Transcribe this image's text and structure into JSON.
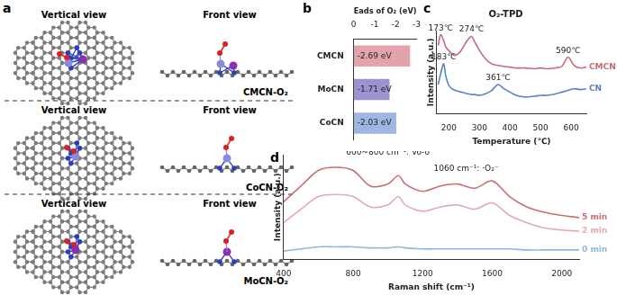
{
  "diagram": {
    "label": "a",
    "views": [
      "Vertical view",
      "Front view"
    ],
    "structures": [
      "CMCN-O₂",
      "CoCN-O₂",
      "MoCN-O₂"
    ]
  },
  "chart_data": [
    {
      "label": "b",
      "type": "bar",
      "orientation": "horizontal",
      "x_label": "Eads of O₂ (eV)",
      "categories": [
        "CMCN",
        "MoCN",
        "CoCN"
      ],
      "values": [
        -2.69,
        -1.71,
        -2.03
      ],
      "value_labels": [
        "-2.69 eV",
        "-1.71 eV",
        "-2.03 eV"
      ],
      "colors": [
        "#e3a3ab",
        "#9d92cd",
        "#9fb6e2"
      ],
      "xlim": [
        0,
        -3
      ],
      "xticks": [
        0,
        -1,
        -2,
        -3
      ],
      "data_labels": true,
      "grid": false
    },
    {
      "label": "c",
      "type": "line",
      "title": "O₂-TPD",
      "x_label": "Temperature (℃)",
      "y_label": "Intensity (a.u.)",
      "x": [
        165,
        173,
        183,
        190,
        200,
        210,
        220,
        230,
        240,
        250,
        260,
        274,
        285,
        300,
        320,
        340,
        361,
        380,
        400,
        420,
        450,
        480,
        500,
        520,
        550,
        570,
        590,
        610,
        630,
        650
      ],
      "series": [
        {
          "name": "CMCN",
          "color": "#c86a78",
          "values": [
            0.82,
            0.95,
            0.88,
            0.8,
            0.76,
            0.72,
            0.7,
            0.72,
            0.76,
            0.82,
            0.88,
            0.93,
            0.86,
            0.76,
            0.66,
            0.6,
            0.58,
            0.57,
            0.56,
            0.55,
            0.55,
            0.54,
            0.55,
            0.54,
            0.55,
            0.57,
            0.68,
            0.58,
            0.55,
            0.56
          ]
        },
        {
          "name": "CN",
          "color": "#5a82c4",
          "values": [
            0.35,
            0.48,
            0.6,
            0.45,
            0.34,
            0.3,
            0.28,
            0.27,
            0.26,
            0.25,
            0.24,
            0.23,
            0.23,
            0.22,
            0.24,
            0.28,
            0.35,
            0.3,
            0.26,
            0.22,
            0.2,
            0.21,
            0.22,
            0.22,
            0.24,
            0.26,
            0.28,
            0.3,
            0.29,
            0.3
          ]
        }
      ],
      "xlim": [
        160,
        650
      ],
      "xticks": [
        200,
        300,
        400,
        500,
        600
      ],
      "ylim": [
        0,
        1
      ],
      "tick_labels": "x",
      "grid": false,
      "annotations": [
        {
          "text": "173℃",
          "x": 173,
          "y": 0.97
        },
        {
          "text": "274℃",
          "x": 274,
          "y": 0.95
        },
        {
          "text": "590℃",
          "x": 590,
          "y": 0.7
        },
        {
          "text": "183℃",
          "x": 183,
          "y": 0.62
        },
        {
          "text": "361℃",
          "x": 361,
          "y": 0.37
        }
      ]
    },
    {
      "label": "d",
      "type": "line",
      "x_label": "Raman shift (cm⁻¹)",
      "y_label": "Intensity (a.u.)",
      "x": [
        400,
        500,
        600,
        700,
        800,
        900,
        1000,
        1060,
        1100,
        1200,
        1300,
        1400,
        1500,
        1600,
        1700,
        1800,
        1900,
        2000,
        2100
      ],
      "series": [
        {
          "name": "5 min",
          "color": "#c87070",
          "values": [
            0.55,
            0.7,
            0.85,
            0.88,
            0.85,
            0.7,
            0.72,
            0.8,
            0.72,
            0.65,
            0.7,
            0.72,
            0.68,
            0.75,
            0.6,
            0.5,
            0.45,
            0.42,
            0.4
          ]
        },
        {
          "name": "2 min",
          "color": "#e6aaaa",
          "values": [
            0.35,
            0.48,
            0.6,
            0.62,
            0.6,
            0.5,
            0.52,
            0.6,
            0.52,
            0.46,
            0.5,
            0.52,
            0.48,
            0.54,
            0.42,
            0.35,
            0.3,
            0.28,
            0.27
          ]
        },
        {
          "name": "0 min",
          "color": "#8fb8e0",
          "values": [
            0.08,
            0.1,
            0.12,
            0.12,
            0.12,
            0.11,
            0.11,
            0.12,
            0.11,
            0.1,
            0.1,
            0.1,
            0.1,
            0.1,
            0.1,
            0.09,
            0.09,
            0.09,
            0.09
          ]
        }
      ],
      "xlim": [
        400,
        2100
      ],
      "xticks": [
        400,
        800,
        1200,
        1600,
        2000
      ],
      "ylim": [
        0,
        1
      ],
      "tick_labels": "x",
      "grid": false,
      "annotations": [
        {
          "text": "600~800 cm⁻¹: Vo-o",
          "x": 1000,
          "y": 0.97
        },
        {
          "text": "1060 cm⁻¹: ·O₂⁻",
          "x": 1450,
          "y": 0.82
        }
      ]
    }
  ]
}
